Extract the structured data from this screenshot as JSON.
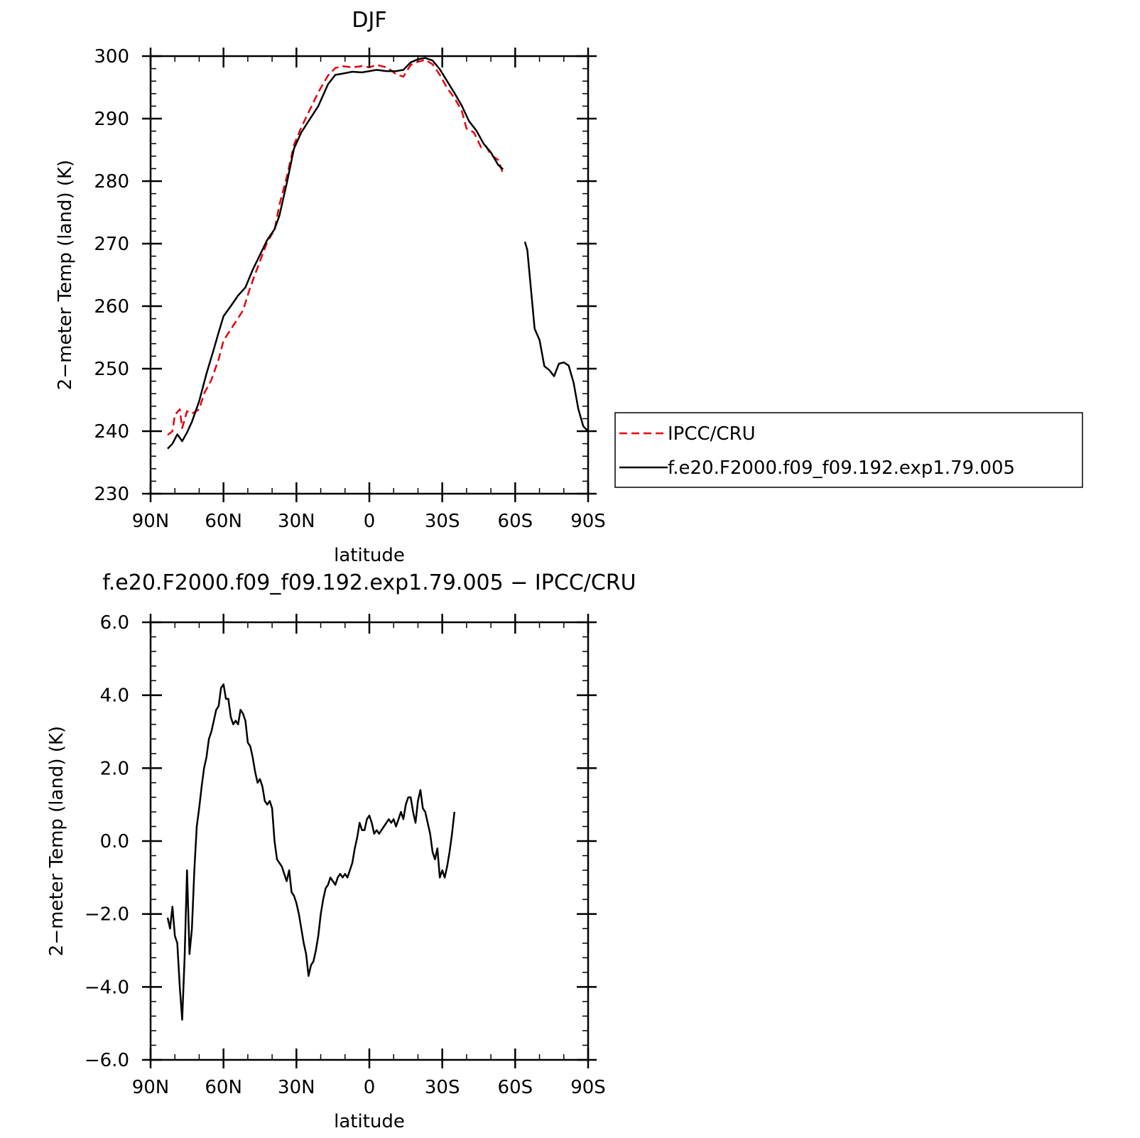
{
  "chart_data": [
    {
      "type": "line",
      "title": "DJF",
      "xlabel": "latitude",
      "ylabel": "2−meter Temp (land) (K)",
      "xlim": [
        90,
        -90
      ],
      "ylim": [
        230,
        300
      ],
      "x_ticks": [
        90,
        60,
        30,
        0,
        -30,
        -60,
        -90
      ],
      "x_tick_labels": [
        "90N",
        "60N",
        "30N",
        "0",
        "30S",
        "60S",
        "90S"
      ],
      "y_ticks": [
        230,
        240,
        250,
        260,
        270,
        280,
        290,
        300
      ],
      "y_tick_labels": [
        "230",
        "240",
        "250",
        "260",
        "270",
        "280",
        "290",
        "300"
      ],
      "legend_position": "right",
      "series": [
        {
          "name": "IPCC/CRU",
          "color": "#e8000b",
          "dash": "dashed",
          "segments": [
            [
              [
                83,
                239.4
              ],
              [
                81,
                240
              ],
              [
                80,
                242.6
              ],
              [
                78,
                243.5
              ],
              [
                77,
                240.5
              ],
              [
                75,
                243.2
              ],
              [
                73,
                242.8
              ],
              [
                70,
                243.5
              ],
              [
                68,
                246
              ],
              [
                65,
                248.2
              ],
              [
                62,
                251.5
              ],
              [
                60,
                254.5
              ],
              [
                56,
                256.9
              ],
              [
                52,
                259.3
              ],
              [
                49,
                263
              ],
              [
                45,
                267.2
              ],
              [
                42,
                270.3
              ],
              [
                39,
                272.2
              ],
              [
                37,
                276.2
              ],
              [
                34,
                280.6
              ],
              [
                31,
                285.8
              ],
              [
                28,
                288.6
              ],
              [
                25,
                291
              ],
              [
                21,
                294.2
              ],
              [
                17,
                296.9
              ],
              [
                14,
                298.1
              ],
              [
                11,
                298.4
              ],
              [
                7,
                298.2
              ],
              [
                3,
                298.4
              ],
              [
                0,
                298.2
              ],
              [
                -3,
                298.6
              ],
              [
                -7,
                298.2
              ],
              [
                -9,
                297.7
              ],
              [
                -11,
                297.1
              ],
              [
                -14,
                296.7
              ],
              [
                -17,
                298.6
              ],
              [
                -20,
                299.1
              ],
              [
                -23,
                299.4
              ],
              [
                -26,
                298.7
              ],
              [
                -29,
                297
              ],
              [
                -32,
                294.9
              ],
              [
                -35,
                293.3
              ],
              [
                -38,
                291.3
              ],
              [
                -40,
                288.4
              ],
              [
                -43,
                287.8
              ],
              [
                -46,
                285.4
              ],
              [
                -48,
                285.6
              ],
              [
                -50,
                284.2
              ],
              [
                -53,
                283.4
              ],
              [
                -55,
                281.2
              ]
            ]
          ]
        },
        {
          "name": "f.e20.F2000.f09_f09.192.exp1.79.005",
          "color": "#000000",
          "dash": "solid",
          "segments": [
            [
              [
                83,
                237.2
              ],
              [
                81,
                238
              ],
              [
                79,
                239.5
              ],
              [
                77,
                238.4
              ],
              [
                75,
                239.8
              ],
              [
                73,
                241.5
              ],
              [
                70,
                244.8
              ],
              [
                67,
                249.2
              ],
              [
                64,
                253.1
              ],
              [
                62,
                255.8
              ],
              [
                60,
                258.4
              ],
              [
                57,
                260
              ],
              [
                54,
                261.7
              ],
              [
                51,
                263
              ],
              [
                48,
                265.8
              ],
              [
                45,
                268.2
              ],
              [
                42,
                270.6
              ],
              [
                39,
                272.3
              ],
              [
                37,
                274.5
              ],
              [
                34,
                279.6
              ],
              [
                31,
                285.2
              ],
              [
                28,
                287.8
              ],
              [
                25,
                289.6
              ],
              [
                21,
                292
              ],
              [
                17,
                295.5
              ],
              [
                14,
                297
              ],
              [
                11,
                297.2
              ],
              [
                7,
                297.5
              ],
              [
                3,
                297.4
              ],
              [
                0,
                297.6
              ],
              [
                -3,
                297.8
              ],
              [
                -7,
                297.6
              ],
              [
                -11,
                297.6
              ],
              [
                -14,
                297.8
              ],
              [
                -17,
                299
              ],
              [
                -20,
                299.5
              ],
              [
                -23,
                299.7
              ],
              [
                -26,
                299.3
              ],
              [
                -29,
                297.9
              ],
              [
                -32,
                296
              ],
              [
                -35,
                294.1
              ],
              [
                -38,
                292.1
              ],
              [
                -41,
                289.6
              ],
              [
                -44,
                288.1
              ],
              [
                -47,
                286
              ],
              [
                -50,
                284.6
              ],
              [
                -53,
                282.6
              ],
              [
                -55,
                281.9
              ]
            ],
            [
              [
                -64,
                270.3
              ],
              [
                -65,
                269
              ],
              [
                -68,
                256.4
              ],
              [
                -70,
                254.6
              ],
              [
                -72,
                250.4
              ],
              [
                -74,
                249.8
              ],
              [
                -76,
                248.8
              ],
              [
                -78,
                250.8
              ],
              [
                -80,
                251
              ],
              [
                -82,
                250.5
              ],
              [
                -84,
                247.8
              ],
              [
                -86,
                243.5
              ],
              [
                -88,
                240.8
              ],
              [
                -90,
                240
              ]
            ]
          ]
        }
      ]
    },
    {
      "type": "line",
      "title": "f.e20.F2000.f09_f09.192.exp1.79.005 − IPCC/CRU",
      "xlabel": "latitude",
      "ylabel": "2−meter Temp (land) (K)",
      "xlim": [
        90,
        -90
      ],
      "ylim": [
        -6,
        6
      ],
      "x_ticks": [
        90,
        60,
        30,
        0,
        -30,
        -60,
        -90
      ],
      "x_tick_labels": [
        "90N",
        "60N",
        "30N",
        "0",
        "30S",
        "60S",
        "90S"
      ],
      "y_ticks": [
        -6,
        -4,
        -2,
        0,
        2,
        4,
        6
      ],
      "y_tick_labels": [
        "−6.0",
        "−4.0",
        "−2.0",
        "0.0",
        "2.0",
        "4.0",
        "6.0"
      ],
      "series": [
        {
          "color": "#000000",
          "dash": "solid",
          "segments": [
            [
              [
                83,
                -2.1
              ],
              [
                82,
                -2.4
              ],
              [
                81,
                -1.8
              ],
              [
                80,
                -2.6
              ],
              [
                79,
                -2.8
              ],
              [
                78,
                -4
              ],
              [
                77,
                -4.9
              ],
              [
                76,
                -3.2
              ],
              [
                75,
                -0.8
              ],
              [
                74,
                -3.1
              ],
              [
                73,
                -2.4
              ],
              [
                72,
                -0.8
              ],
              [
                71,
                0.4
              ],
              [
                70,
                0.9
              ],
              [
                69,
                1.5
              ],
              [
                68,
                2
              ],
              [
                67,
                2.3
              ],
              [
                66,
                2.8
              ],
              [
                65,
                3
              ],
              [
                64,
                3.3
              ],
              [
                63,
                3.6
              ],
              [
                62,
                3.7
              ],
              [
                61,
                4.2
              ],
              [
                60,
                4.3
              ],
              [
                59,
                3.9
              ],
              [
                58,
                3.9
              ],
              [
                57,
                3.4
              ],
              [
                56,
                3.2
              ],
              [
                55,
                3.3
              ],
              [
                54,
                3.2
              ],
              [
                53,
                3.6
              ],
              [
                52,
                3.5
              ],
              [
                51,
                3.3
              ],
              [
                50,
                2.7
              ],
              [
                49,
                2.6
              ],
              [
                48,
                2.3
              ],
              [
                47,
                1.9
              ],
              [
                46,
                1.6
              ],
              [
                45,
                1.7
              ],
              [
                44,
                1.5
              ],
              [
                43,
                1.1
              ],
              [
                42,
                1
              ],
              [
                41,
                1.1
              ],
              [
                40,
                0.9
              ],
              [
                39,
                0
              ],
              [
                38,
                -0.5
              ],
              [
                37,
                -0.6
              ],
              [
                36,
                -0.7
              ],
              [
                35,
                -0.9
              ],
              [
                34,
                -1.1
              ],
              [
                33,
                -0.8
              ],
              [
                32,
                -1.4
              ],
              [
                31,
                -1.5
              ],
              [
                30,
                -1.7
              ],
              [
                29,
                -2
              ],
              [
                28,
                -2.4
              ],
              [
                27,
                -2.8
              ],
              [
                26,
                -3.1
              ],
              [
                25,
                -3.7
              ],
              [
                24,
                -3.4
              ],
              [
                23,
                -3.3
              ],
              [
                22,
                -3
              ],
              [
                21,
                -2.6
              ],
              [
                20,
                -2
              ],
              [
                19,
                -1.6
              ],
              [
                18,
                -1.3
              ],
              [
                17,
                -1.2
              ],
              [
                16,
                -1
              ],
              [
                15,
                -1.1
              ],
              [
                14,
                -1.2
              ],
              [
                13,
                -1
              ],
              [
                12,
                -0.9
              ],
              [
                11,
                -1
              ],
              [
                10,
                -0.9
              ],
              [
                9,
                -1
              ],
              [
                8,
                -0.8
              ],
              [
                7,
                -0.6
              ],
              [
                6,
                -0.2
              ],
              [
                5,
                0.1
              ],
              [
                4,
                0.5
              ],
              [
                3,
                0.3
              ],
              [
                2,
                0.3
              ],
              [
                1,
                0.6
              ],
              [
                0,
                0.7
              ],
              [
                -1,
                0.5
              ],
              [
                -2,
                0.2
              ],
              [
                -3,
                0.3
              ],
              [
                -4,
                0.2
              ],
              [
                -5,
                0.3
              ],
              [
                -6,
                0.4
              ],
              [
                -7,
                0.5
              ],
              [
                -8,
                0.6
              ],
              [
                -9,
                0.5
              ],
              [
                -10,
                0.6
              ],
              [
                -11,
                0.4
              ],
              [
                -12,
                0.6
              ],
              [
                -13,
                0.8
              ],
              [
                -14,
                0.6
              ],
              [
                -15,
                1
              ],
              [
                -16,
                1.2
              ],
              [
                -17,
                1.2
              ],
              [
                -18,
                0.8
              ],
              [
                -19,
                0.5
              ],
              [
                -20,
                1.1
              ],
              [
                -21,
                1.4
              ],
              [
                -22,
                0.9
              ],
              [
                -23,
                0.8
              ],
              [
                -24,
                0.5
              ],
              [
                -25,
                0.2
              ],
              [
                -26,
                -0.3
              ],
              [
                -27,
                -0.5
              ],
              [
                -28,
                -0.2
              ],
              [
                -29,
                -1
              ],
              [
                -30,
                -0.8
              ],
              [
                -31,
                -1
              ],
              [
                -32,
                -0.7
              ],
              [
                -33,
                -0.3
              ],
              [
                -34,
                0.2
              ],
              [
                -35,
                0.8
              ]
            ]
          ]
        }
      ]
    }
  ]
}
